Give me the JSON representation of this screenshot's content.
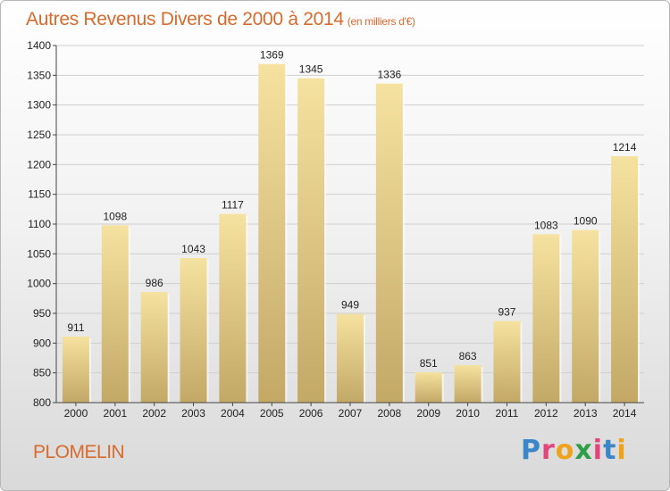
{
  "title": {
    "main": "Autres Revenus Divers de 2000 à 2014",
    "unit": "(en milliers d'€)"
  },
  "commune": "PLOMELIN",
  "logo": {
    "letters": [
      "P",
      "r",
      "o",
      "x",
      "i",
      "t",
      "i"
    ],
    "colors": [
      "#3a86c8",
      "#e2457a",
      "#f0a21c",
      "#2e9e47",
      "#e2457a",
      "#3a86c8",
      "#f0a21c"
    ]
  },
  "colors": {
    "title": "#d86a2e",
    "bar_top": "#f6e2a0",
    "bar_bottom": "#c3a866",
    "grid": "#cfcfcf"
  },
  "chart_data": {
    "type": "bar",
    "title": "Autres Revenus Divers de 2000 à 2014",
    "xlabel": "",
    "ylabel": "",
    "categories": [
      "2000",
      "2001",
      "2002",
      "2003",
      "2004",
      "2005",
      "2006",
      "2007",
      "2008",
      "2009",
      "2010",
      "2011",
      "2012",
      "2013",
      "2014"
    ],
    "values": [
      911,
      1098,
      986,
      1043,
      1117,
      1369,
      1345,
      949,
      1336,
      851,
      863,
      937,
      1083,
      1090,
      1214
    ],
    "ylim": [
      800,
      1400
    ],
    "yticks": [
      800,
      850,
      900,
      950,
      1000,
      1050,
      1100,
      1150,
      1200,
      1250,
      1300,
      1350,
      1400
    ],
    "grid": true
  }
}
